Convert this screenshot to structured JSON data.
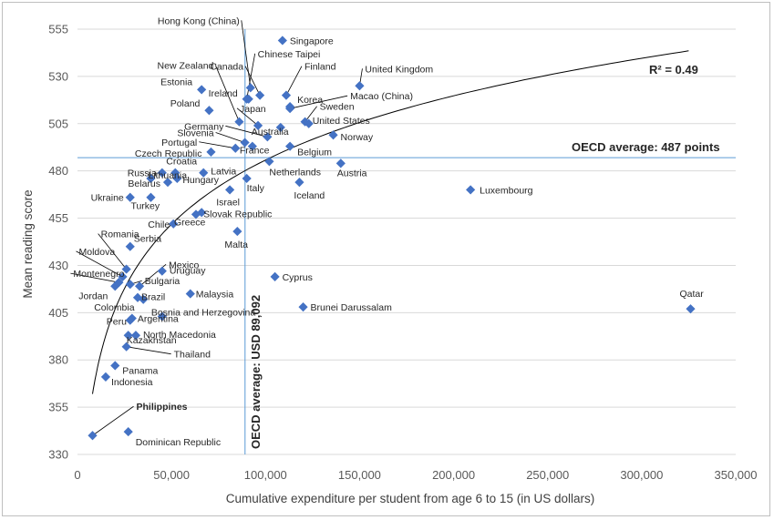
{
  "chart_data": {
    "type": "scatter",
    "xlabel": "Cumulative expenditure per student from age 6 to 15 (in US dollars)",
    "ylabel": "Mean reading score",
    "xlim": [
      0,
      350000
    ],
    "ylim": [
      330,
      555
    ],
    "x_ticks": [
      "0",
      "50,000",
      "100,000",
      "150,000",
      "200,000",
      "250,000",
      "300,000",
      "350,000"
    ],
    "y_ticks": [
      "330",
      "355",
      "380",
      "405",
      "430",
      "455",
      "480",
      "505",
      "530",
      "555"
    ],
    "grid": "horizontal",
    "marker_color": "#4472C4",
    "highlight": "Philippines",
    "annotations": {
      "r_squared": "R² = 0.49",
      "oecd_score": "OECD average: 487 points",
      "oecd_spend": "OECD average: USD 89,092"
    },
    "reference_lines": {
      "oecd_spend_x": 89092,
      "oecd_score_y": 487
    },
    "trendline": {
      "type": "logarithmic",
      "r_squared": 0.49
    },
    "points": [
      {
        "name": "Singapore",
        "x": 109000,
        "y": 549
      },
      {
        "name": "Hong Kong (China)",
        "x": 92000,
        "y": 524
      },
      {
        "name": "Canada",
        "x": 97000,
        "y": 520
      },
      {
        "name": "Chinese Taipei",
        "x": 90000,
        "y": 518
      },
      {
        "name": "Finland",
        "x": 111000,
        "y": 520
      },
      {
        "name": "United Kingdom",
        "x": 150000,
        "y": 525
      },
      {
        "name": "Macao (China)",
        "x": 113000,
        "y": 513
      },
      {
        "name": "Estonia",
        "x": 66000,
        "y": 523
      },
      {
        "name": "Ireland",
        "x": 91000,
        "y": 518
      },
      {
        "name": "Korea",
        "x": 113000,
        "y": 514
      },
      {
        "name": "Poland",
        "x": 70000,
        "y": 512
      },
      {
        "name": "Sweden",
        "x": 121000,
        "y": 506
      },
      {
        "name": "New Zealand",
        "x": 86000,
        "y": 506
      },
      {
        "name": "United States",
        "x": 123000,
        "y": 505
      },
      {
        "name": "Japan",
        "x": 96000,
        "y": 504
      },
      {
        "name": "Australia",
        "x": 108000,
        "y": 503
      },
      {
        "name": "Germany",
        "x": 101000,
        "y": 498
      },
      {
        "name": "Norway",
        "x": 136000,
        "y": 499
      },
      {
        "name": "Slovenia",
        "x": 89000,
        "y": 495
      },
      {
        "name": "Belgium",
        "x": 113000,
        "y": 493
      },
      {
        "name": "France",
        "x": 93000,
        "y": 493
      },
      {
        "name": "Portugal",
        "x": 84000,
        "y": 492
      },
      {
        "name": "Czech Republic",
        "x": 71000,
        "y": 490
      },
      {
        "name": "Netherlands",
        "x": 102000,
        "y": 485
      },
      {
        "name": "Austria",
        "x": 140000,
        "y": 484
      },
      {
        "name": "Latvia",
        "x": 67000,
        "y": 479
      },
      {
        "name": "Croatia",
        "x": 52000,
        "y": 479
      },
      {
        "name": "Russia",
        "x": 45000,
        "y": 479
      },
      {
        "name": "Italy",
        "x": 90000,
        "y": 476
      },
      {
        "name": "Iceland",
        "x": 118000,
        "y": 474
      },
      {
        "name": "Belarus",
        "x": 48000,
        "y": 474
      },
      {
        "name": "Hungary",
        "x": 53000,
        "y": 476
      },
      {
        "name": "Luxembourg",
        "x": 209000,
        "y": 470
      },
      {
        "name": "Israel",
        "x": 81000,
        "y": 470
      },
      {
        "name": "Ukraine",
        "x": 28000,
        "y": 466
      },
      {
        "name": "Lithuania",
        "x": 39000,
        "y": 476
      },
      {
        "name": "Turkey",
        "x": 39000,
        "y": 466
      },
      {
        "name": "Slovak Republic",
        "x": 66000,
        "y": 458
      },
      {
        "name": "Chile",
        "x": 51000,
        "y": 452
      },
      {
        "name": "Greece",
        "x": 63000,
        "y": 457
      },
      {
        "name": "Malta",
        "x": 85000,
        "y": 448
      },
      {
        "name": "Serbia",
        "x": 28000,
        "y": 440
      },
      {
        "name": "Romania",
        "x": 26000,
        "y": 428
      },
      {
        "name": "Moldova",
        "x": 24000,
        "y": 424
      },
      {
        "name": "Montenegro",
        "x": 22000,
        "y": 421
      },
      {
        "name": "Mexico",
        "x": 33000,
        "y": 419
      },
      {
        "name": "Uruguay",
        "x": 45000,
        "y": 427
      },
      {
        "name": "Bulgaria",
        "x": 28000,
        "y": 420
      },
      {
        "name": "Jordan",
        "x": 20000,
        "y": 419
      },
      {
        "name": "Cyprus",
        "x": 105000,
        "y": 424
      },
      {
        "name": "Brazil",
        "x": 32000,
        "y": 413
      },
      {
        "name": "Colombia",
        "x": 35000,
        "y": 412
      },
      {
        "name": "Malaysia",
        "x": 60000,
        "y": 415
      },
      {
        "name": "Brunei Darussalam",
        "x": 120000,
        "y": 408
      },
      {
        "name": "Qatar",
        "x": 326000,
        "y": 407
      },
      {
        "name": "Bosnia and Herzegovina",
        "x": 45000,
        "y": 403
      },
      {
        "name": "Argentina",
        "x": 29000,
        "y": 402
      },
      {
        "name": "Peru",
        "x": 28000,
        "y": 401
      },
      {
        "name": "North Macedonia",
        "x": 31000,
        "y": 393
      },
      {
        "name": "Kazakhstan",
        "x": 27000,
        "y": 393
      },
      {
        "name": "Thailand",
        "x": 26000,
        "y": 387
      },
      {
        "name": "Panama",
        "x": 20000,
        "y": 377
      },
      {
        "name": "Indonesia",
        "x": 15000,
        "y": 371
      },
      {
        "name": "Dominican Republic",
        "x": 27000,
        "y": 342
      },
      {
        "name": "Philippines",
        "x": 8000,
        "y": 340
      }
    ]
  }
}
